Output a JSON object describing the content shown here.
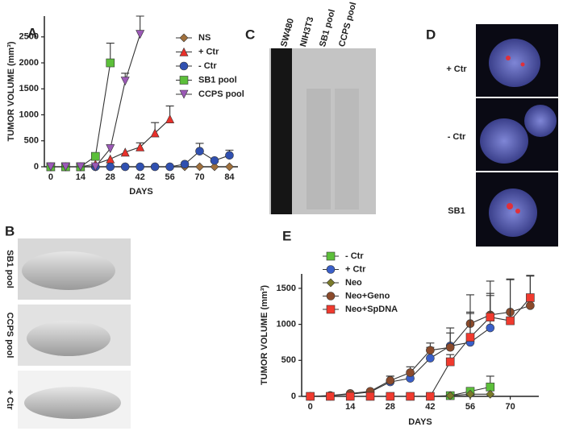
{
  "panels": {
    "a": "A",
    "b": "B",
    "c": "C",
    "d": "D",
    "e": "E"
  },
  "chart_data": [
    {
      "type": "line",
      "xlabel": "DAYS",
      "ylabel": "TUMOR VOLUME (mm³)",
      "xlim": [
        -3,
        88
      ],
      "xticks": [
        0,
        14,
        28,
        42,
        56,
        70,
        84
      ],
      "ylim": [
        0,
        2900
      ],
      "yticks": [
        0,
        500,
        1000,
        1500,
        2000,
        2500
      ],
      "series": [
        {
          "name": "NS",
          "color": "#a0703c",
          "marker": "diamond",
          "x": [
            0,
            7,
            14,
            21,
            28,
            35,
            42,
            49,
            56,
            63,
            70,
            77,
            84
          ],
          "values": [
            0,
            0,
            0,
            0,
            0,
            0,
            0,
            0,
            0,
            0,
            0,
            0,
            0
          ],
          "errors": [
            null,
            null,
            null,
            null,
            null,
            null,
            null,
            null,
            null,
            null,
            null,
            null,
            null
          ]
        },
        {
          "name": "+ Ctr",
          "color": "#e8302a",
          "marker": "triangle",
          "x": [
            0,
            7,
            14,
            21,
            28,
            35,
            42,
            49,
            56
          ],
          "values": [
            0,
            0,
            0,
            50,
            150,
            280,
            380,
            650,
            920
          ],
          "errors": [
            null,
            null,
            null,
            null,
            null,
            null,
            80,
            200,
            250
          ]
        },
        {
          "name": "- Ctr",
          "color": "#3050b0",
          "marker": "circle",
          "x": [
            0,
            7,
            14,
            21,
            28,
            35,
            42,
            49,
            56,
            63,
            70,
            77,
            84
          ],
          "values": [
            0,
            0,
            0,
            0,
            0,
            0,
            0,
            0,
            0,
            50,
            300,
            120,
            220
          ],
          "errors": [
            null,
            null,
            null,
            null,
            null,
            null,
            null,
            null,
            null,
            null,
            150,
            null,
            100
          ]
        },
        {
          "name": "SB1 pool",
          "color": "#5cbf3a",
          "marker": "square",
          "x": [
            0,
            7,
            14,
            21,
            28
          ],
          "values": [
            0,
            0,
            0,
            200,
            2000
          ],
          "errors": [
            null,
            null,
            null,
            null,
            380
          ]
        },
        {
          "name": "CCPS pool",
          "color": "#9b59b6",
          "marker": "triangle-down",
          "x": [
            0,
            7,
            14,
            21,
            28,
            35,
            42
          ],
          "values": [
            0,
            0,
            0,
            0,
            350,
            1650,
            2550
          ],
          "errors": [
            null,
            null,
            null,
            null,
            null,
            150,
            350
          ]
        }
      ]
    },
    {
      "type": "line",
      "xlabel": "DAYS",
      "ylabel": "TUMOR VOLUME (mm³)",
      "xlim": [
        -3,
        80
      ],
      "xticks": [
        0,
        14,
        28,
        42,
        56,
        70
      ],
      "ylim": [
        0,
        1700
      ],
      "yticks": [
        0,
        500,
        1000,
        1500
      ],
      "series": [
        {
          "name": "- Ctr",
          "color": "#5cbf3a",
          "marker": "square",
          "x": [
            49,
            56,
            63
          ],
          "values": [
            10,
            70,
            130
          ],
          "errors": [
            20,
            50,
            150
          ]
        },
        {
          "name": "+ Ctr",
          "color": "#3a5fc8",
          "marker": "circle",
          "x": [
            0,
            7,
            14,
            21,
            28,
            35,
            42,
            49,
            56,
            63
          ],
          "values": [
            0,
            10,
            30,
            60,
            200,
            250,
            530,
            700,
            750,
            950
          ],
          "errors": [
            null,
            null,
            null,
            null,
            80,
            60,
            150,
            250,
            400,
            450
          ]
        },
        {
          "name": "Neo",
          "color": "#7a7a2a",
          "marker": "diamond",
          "x": [
            0,
            7,
            14,
            21,
            28,
            35,
            42,
            49,
            56,
            63
          ],
          "values": [
            0,
            0,
            0,
            0,
            0,
            0,
            0,
            10,
            30,
            30
          ],
          "errors": [
            null,
            null,
            null,
            null,
            null,
            null,
            null,
            null,
            null,
            null
          ]
        },
        {
          "name": "Neo+Geno",
          "color": "#8b4a2b",
          "marker": "circle",
          "x": [
            0,
            7,
            14,
            21,
            28,
            35,
            42,
            49,
            56,
            63,
            70,
            77
          ],
          "values": [
            0,
            10,
            40,
            70,
            220,
            330,
            640,
            680,
            1010,
            1130,
            1170,
            1260
          ],
          "errors": [
            null,
            null,
            null,
            null,
            60,
            80,
            100,
            200,
            400,
            300,
            450,
            420
          ]
        },
        {
          "name": "Neo+SpDNA",
          "color": "#f03a2e",
          "marker": "square",
          "x": [
            0,
            7,
            14,
            21,
            28,
            35,
            42,
            49,
            56,
            63,
            70,
            77
          ],
          "values": [
            0,
            0,
            0,
            0,
            0,
            0,
            0,
            480,
            820,
            1100,
            1050,
            1370
          ],
          "errors": [
            null,
            null,
            null,
            null,
            null,
            null,
            null,
            100,
            350,
            500,
            580,
            300
          ]
        }
      ]
    }
  ],
  "photos_b": {
    "labels": [
      "SB1 pool",
      "CCPS pool",
      "+ Ctr"
    ]
  },
  "gel_c": {
    "lanes": [
      "SW480",
      "NIH3T3",
      "SB1 pool",
      "CCPS pool"
    ]
  },
  "cells_d": {
    "labels": [
      "+ Ctr",
      "- Ctr",
      "SB1"
    ]
  }
}
